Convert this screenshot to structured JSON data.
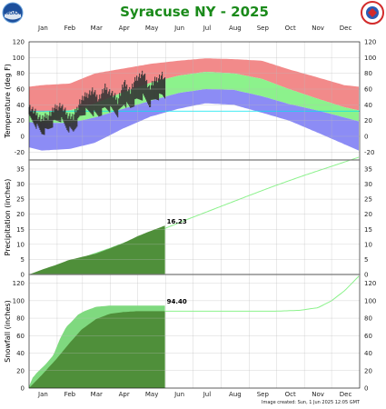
{
  "title": "Syracuse NY - 2025",
  "footer": "Image created: Sun, 1 Jun 2025 12:05 GMT",
  "logos": {
    "left": {
      "text": "NOAA",
      "icon": "noaa-logo"
    },
    "right": {
      "text": "NATIONAL WEATHER SERVICE",
      "icon": "nws-logo"
    }
  },
  "colors": {
    "title": "#1a8a1a",
    "record_high": "#f28a8a",
    "normal_range": "#8cf28c",
    "record_low": "#8c8cf5",
    "observed_temp": "#333333",
    "observed_accum": "#4f8f3a",
    "normal_accum_fill": "#7fd97f",
    "normal_line": "#8cf28c",
    "cyan_line": "#00e5ee",
    "grid": "#bbbbbb",
    "divider": "#777777"
  },
  "chart_data": [
    {
      "type": "area",
      "panel": "temperature",
      "ylabel": "Temperature (deg F)",
      "ylim": [
        -30,
        120
      ],
      "yticks": [
        -20,
        0,
        20,
        40,
        60,
        80,
        100,
        120
      ],
      "months": [
        "Jan",
        "Feb",
        "Mar",
        "Apr",
        "May",
        "Jun",
        "Jul",
        "Aug",
        "Sep",
        "Oct",
        "Nov",
        "Dec"
      ],
      "x_unit": "day of year",
      "xlim": [
        1,
        365
      ],
      "observed_through_day": 151,
      "freezing_line": 32,
      "series": [
        {
          "name": "Record high",
          "x": [
            1,
            15,
            46,
            74,
            105,
            135,
            166,
            196,
            227,
            258,
            288,
            319,
            349,
            365
          ],
          "values": [
            63,
            65,
            67,
            80,
            86,
            92,
            96,
            99,
            98,
            96,
            85,
            75,
            65,
            63
          ]
        },
        {
          "name": "Normal high",
          "x": [
            1,
            15,
            46,
            74,
            105,
            135,
            166,
            196,
            227,
            258,
            288,
            319,
            349,
            365
          ],
          "values": [
            32,
            31,
            33,
            42,
            56,
            68,
            77,
            82,
            80,
            73,
            60,
            48,
            37,
            33
          ]
        },
        {
          "name": "Normal low",
          "x": [
            1,
            15,
            46,
            74,
            105,
            135,
            166,
            196,
            227,
            258,
            288,
            319,
            349,
            365
          ],
          "values": [
            18,
            17,
            17,
            24,
            35,
            45,
            55,
            60,
            59,
            51,
            41,
            33,
            24,
            19
          ]
        },
        {
          "name": "Record low",
          "x": [
            1,
            15,
            46,
            74,
            105,
            135,
            166,
            196,
            227,
            258,
            288,
            319,
            349,
            365
          ],
          "values": [
            -14,
            -18,
            -16,
            -8,
            10,
            25,
            35,
            42,
            40,
            30,
            20,
            5,
            -10,
            -18
          ]
        },
        {
          "name": "Observed high",
          "x": [
            1,
            8,
            15,
            22,
            29,
            36,
            43,
            50,
            57,
            64,
            71,
            78,
            85,
            92,
            99,
            106,
            113,
            120,
            127,
            134,
            141,
            148,
            151
          ],
          "values": [
            38,
            30,
            22,
            26,
            35,
            40,
            28,
            24,
            44,
            52,
            58,
            48,
            62,
            55,
            46,
            68,
            58,
            75,
            80,
            62,
            72,
            78,
            70
          ]
        },
        {
          "name": "Observed low",
          "x": [
            1,
            8,
            15,
            22,
            29,
            36,
            43,
            50,
            57,
            64,
            71,
            78,
            85,
            92,
            99,
            106,
            113,
            120,
            127,
            134,
            141,
            148,
            151
          ],
          "values": [
            24,
            15,
            4,
            8,
            18,
            22,
            10,
            6,
            24,
            32,
            30,
            26,
            36,
            34,
            28,
            42,
            36,
            46,
            50,
            40,
            48,
            52,
            50
          ]
        }
      ]
    },
    {
      "type": "area",
      "panel": "precipitation",
      "ylabel": "Precipitation (inches)",
      "ylim": [
        0,
        38
      ],
      "yticks": [
        0,
        5,
        10,
        15,
        20,
        25,
        30,
        35
      ],
      "x_unit": "day of year",
      "observed_through_day": 151,
      "annotation": "16.23",
      "series": [
        {
          "name": "Normal accumulated",
          "x": [
            1,
            31,
            59,
            90,
            120,
            151,
            181,
            212,
            243,
            273,
            304,
            334,
            365
          ],
          "values": [
            0,
            2.9,
            5.6,
            8.8,
            12.2,
            15.3,
            18.9,
            22.5,
            26.1,
            29.5,
            32.8,
            35.8,
            38.9
          ]
        },
        {
          "name": "Observed accumulated",
          "x": [
            1,
            15,
            31,
            45,
            59,
            75,
            90,
            105,
            120,
            135,
            151
          ],
          "values": [
            0,
            1.6,
            3.2,
            4.8,
            5.8,
            6.9,
            8.6,
            10.4,
            12.6,
            14.4,
            16.23
          ]
        }
      ]
    },
    {
      "type": "area",
      "panel": "snowfall",
      "ylabel": "Snowfall (inches)",
      "ylim": [
        0,
        130
      ],
      "yticks": [
        0,
        20,
        40,
        60,
        80,
        100,
        120
      ],
      "x_unit": "day of year",
      "observed_through_day": 151,
      "annotation": "94.40",
      "series": [
        {
          "name": "Normal accumulated",
          "x": [
            1,
            15,
            31,
            46,
            59,
            75,
            90,
            105,
            120,
            151,
            181,
            212,
            243,
            273,
            300,
            320,
            335,
            350,
            365
          ],
          "values": [
            0,
            15,
            33,
            52,
            67,
            79,
            85,
            87,
            88,
            88,
            88,
            88,
            88,
            88,
            89,
            92,
            100,
            112,
            128
          ]
        },
        {
          "name": "Observed accumulated",
          "x": [
            1,
            5,
            10,
            20,
            28,
            35,
            42,
            48,
            55,
            62,
            75,
            90,
            105,
            120,
            151
          ],
          "values": [
            2,
            12,
            18,
            28,
            38,
            56,
            70,
            76,
            84,
            88,
            93,
            94.4,
            94.4,
            94.4,
            94.4
          ]
        }
      ]
    }
  ]
}
